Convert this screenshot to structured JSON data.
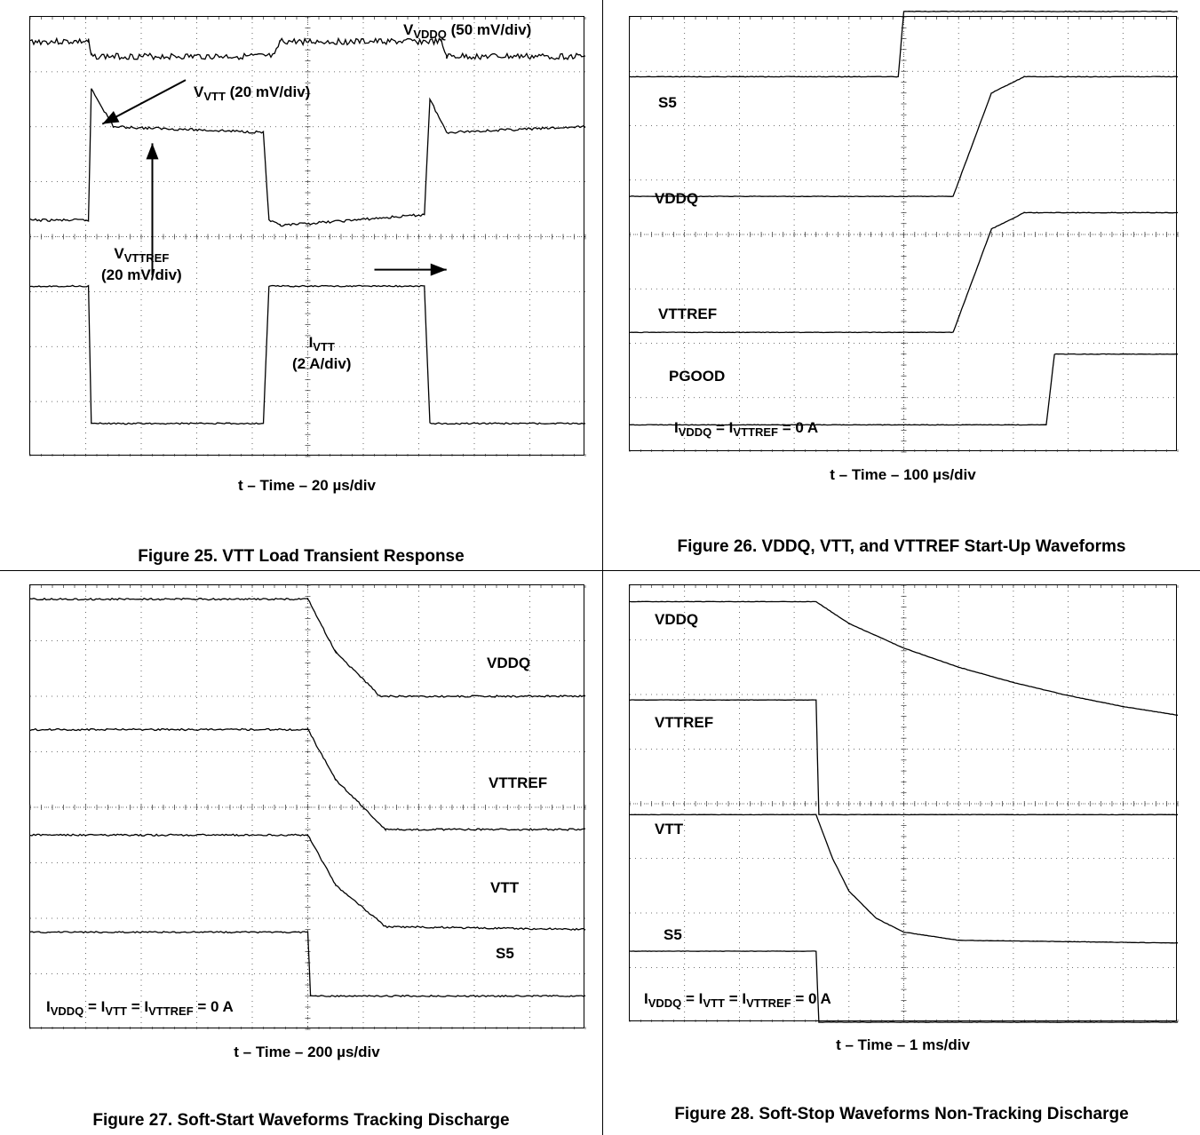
{
  "chart_data": [
    {
      "type": "line",
      "caption": "Figure 25. VTT Load Transient Response",
      "xlabel": "t – Time – 20 µs/div",
      "grid": true,
      "divisions": {
        "x": 10,
        "y": 8
      },
      "annotations": [
        {
          "id": "vddq",
          "main": "V",
          "sub": "VDDQ",
          "rest": " (50 mV/div)"
        },
        {
          "id": "vtt",
          "main": "V",
          "sub": "VTT",
          "rest": " (20 mV/div)"
        },
        {
          "id": "vttref",
          "main": "V",
          "sub": "VTTREF",
          "rest": "",
          "line2": "(20 mV/div)"
        },
        {
          "id": "ivtt",
          "main": "I",
          "sub": "VTT",
          "rest": "",
          "line2": "(2 A/div)"
        }
      ],
      "series": [
        {
          "name": "VDDQ",
          "x": [
            0,
            1.05,
            1.1,
            4.4,
            4.5,
            7.4,
            7.5,
            10
          ],
          "y": [
            7.55,
            7.55,
            7.28,
            7.28,
            7.55,
            7.55,
            7.28,
            7.28
          ]
        },
        {
          "name": "VTT",
          "x": [
            0,
            1.05,
            1.1,
            1.5,
            4.2,
            4.3,
            4.5,
            7.1,
            7.2,
            7.5,
            10
          ],
          "y": [
            4.3,
            4.3,
            6.7,
            6.0,
            5.9,
            4.3,
            4.2,
            4.4,
            6.5,
            5.9,
            6.0
          ]
        },
        {
          "name": "IVTT",
          "x": [
            0,
            1.05,
            1.1,
            4.2,
            4.3,
            7.1,
            7.2,
            10
          ],
          "y": [
            3.1,
            3.1,
            0.6,
            0.6,
            3.1,
            3.1,
            0.6,
            0.6
          ]
        }
      ]
    },
    {
      "type": "line",
      "caption": "Figure 26. VDDQ, VTT, and VTTREF Start-Up Waveforms",
      "xlabel": "t – Time – 100 µs/div",
      "grid": true,
      "divisions": {
        "x": 10,
        "y": 8
      },
      "annotations": [
        {
          "id": "s5",
          "text": "S5"
        },
        {
          "id": "vddq",
          "text": "VDDQ"
        },
        {
          "id": "vttref",
          "text": "VTTREF"
        },
        {
          "id": "pgood",
          "text": "PGOOD"
        },
        {
          "id": "cond",
          "parts": [
            [
              "I",
              "VDDQ"
            ],
            [
              " = I",
              "VTTREF"
            ],
            [
              "  = 0 A",
              ""
            ]
          ]
        }
      ],
      "series": [
        {
          "name": "S5",
          "x": [
            0,
            4.9,
            5.0,
            10
          ],
          "y": [
            6.9,
            6.9,
            8.1,
            8.1
          ]
        },
        {
          "name": "VDDQ",
          "x": [
            0,
            5.9,
            6.6,
            7.2,
            10
          ],
          "y": [
            4.7,
            4.7,
            6.6,
            6.9,
            6.9
          ]
        },
        {
          "name": "VTTREF",
          "x": [
            0,
            5.9,
            6.6,
            7.2,
            10
          ],
          "y": [
            2.2,
            2.2,
            4.1,
            4.4,
            4.4
          ]
        },
        {
          "name": "PGOOD",
          "x": [
            0,
            7.6,
            7.75,
            10
          ],
          "y": [
            0.5,
            0.5,
            1.8,
            1.8
          ]
        }
      ]
    },
    {
      "type": "line",
      "caption": "Figure 27. Soft-Start Waveforms Tracking Discharge",
      "xlabel": "t – Time – 200 µs/div",
      "grid": true,
      "divisions": {
        "x": 10,
        "y": 8
      },
      "annotations": [
        {
          "id": "vddq",
          "text": "VDDQ"
        },
        {
          "id": "vttref",
          "text": "VTTREF"
        },
        {
          "id": "vtt",
          "text": "VTT"
        },
        {
          "id": "s5",
          "text": "S5"
        },
        {
          "id": "cond",
          "parts": [
            [
              "I",
              "VDDQ"
            ],
            [
              " = I",
              "VTT"
            ],
            [
              " = I",
              "VTTREF"
            ],
            [
              "  = 0 A",
              ""
            ]
          ]
        }
      ],
      "series": [
        {
          "name": "VDDQ",
          "x": [
            0,
            5.0,
            5.5,
            6.3,
            10
          ],
          "y": [
            7.75,
            7.75,
            6.8,
            6.0,
            6.0
          ]
        },
        {
          "name": "VTTREF",
          "x": [
            0,
            5.0,
            5.5,
            6.4,
            10
          ],
          "y": [
            5.4,
            5.4,
            4.5,
            3.6,
            3.6
          ]
        },
        {
          "name": "VTT",
          "x": [
            0,
            5.0,
            5.5,
            6.4,
            10
          ],
          "y": [
            3.5,
            3.5,
            2.6,
            1.85,
            1.8
          ]
        },
        {
          "name": "S5",
          "x": [
            0,
            5.0,
            5.05,
            10
          ],
          "y": [
            1.75,
            1.75,
            0.6,
            0.6
          ]
        }
      ]
    },
    {
      "type": "line",
      "caption": "Figure 28. Soft-Stop Waveforms Non-Tracking Discharge",
      "xlabel": "t – Time – 1 ms/div",
      "grid": true,
      "divisions": {
        "x": 10,
        "y": 8
      },
      "annotations": [
        {
          "id": "vddq",
          "text": "VDDQ"
        },
        {
          "id": "vttref",
          "text": "VTTREF"
        },
        {
          "id": "vtt",
          "text": "VTT"
        },
        {
          "id": "s5",
          "text": "S5"
        },
        {
          "id": "cond",
          "parts": [
            [
              "I",
              "VDDQ"
            ],
            [
              " = I",
              "VTT"
            ],
            [
              " = I",
              "VTTREF"
            ],
            [
              "  = 0 A",
              ""
            ]
          ]
        }
      ],
      "series": [
        {
          "name": "VDDQ",
          "x": [
            0,
            3.4,
            4.0,
            5.0,
            6.0,
            7.0,
            8.0,
            9.0,
            10
          ],
          "y": [
            7.7,
            7.7,
            7.3,
            6.85,
            6.5,
            6.22,
            5.98,
            5.78,
            5.62
          ]
        },
        {
          "name": "VTTREF",
          "x": [
            0,
            3.4,
            3.45,
            10
          ],
          "y": [
            5.9,
            5.9,
            3.8,
            3.8
          ]
        },
        {
          "name": "VTT",
          "x": [
            0,
            3.4,
            3.7,
            4.0,
            4.5,
            5.0,
            6.0,
            10
          ],
          "y": [
            3.8,
            3.8,
            3.0,
            2.4,
            1.9,
            1.65,
            1.5,
            1.45
          ]
        },
        {
          "name": "S5",
          "x": [
            0,
            3.4,
            3.45,
            10
          ],
          "y": [
            1.3,
            1.3,
            0.0,
            0.0
          ]
        }
      ]
    }
  ]
}
